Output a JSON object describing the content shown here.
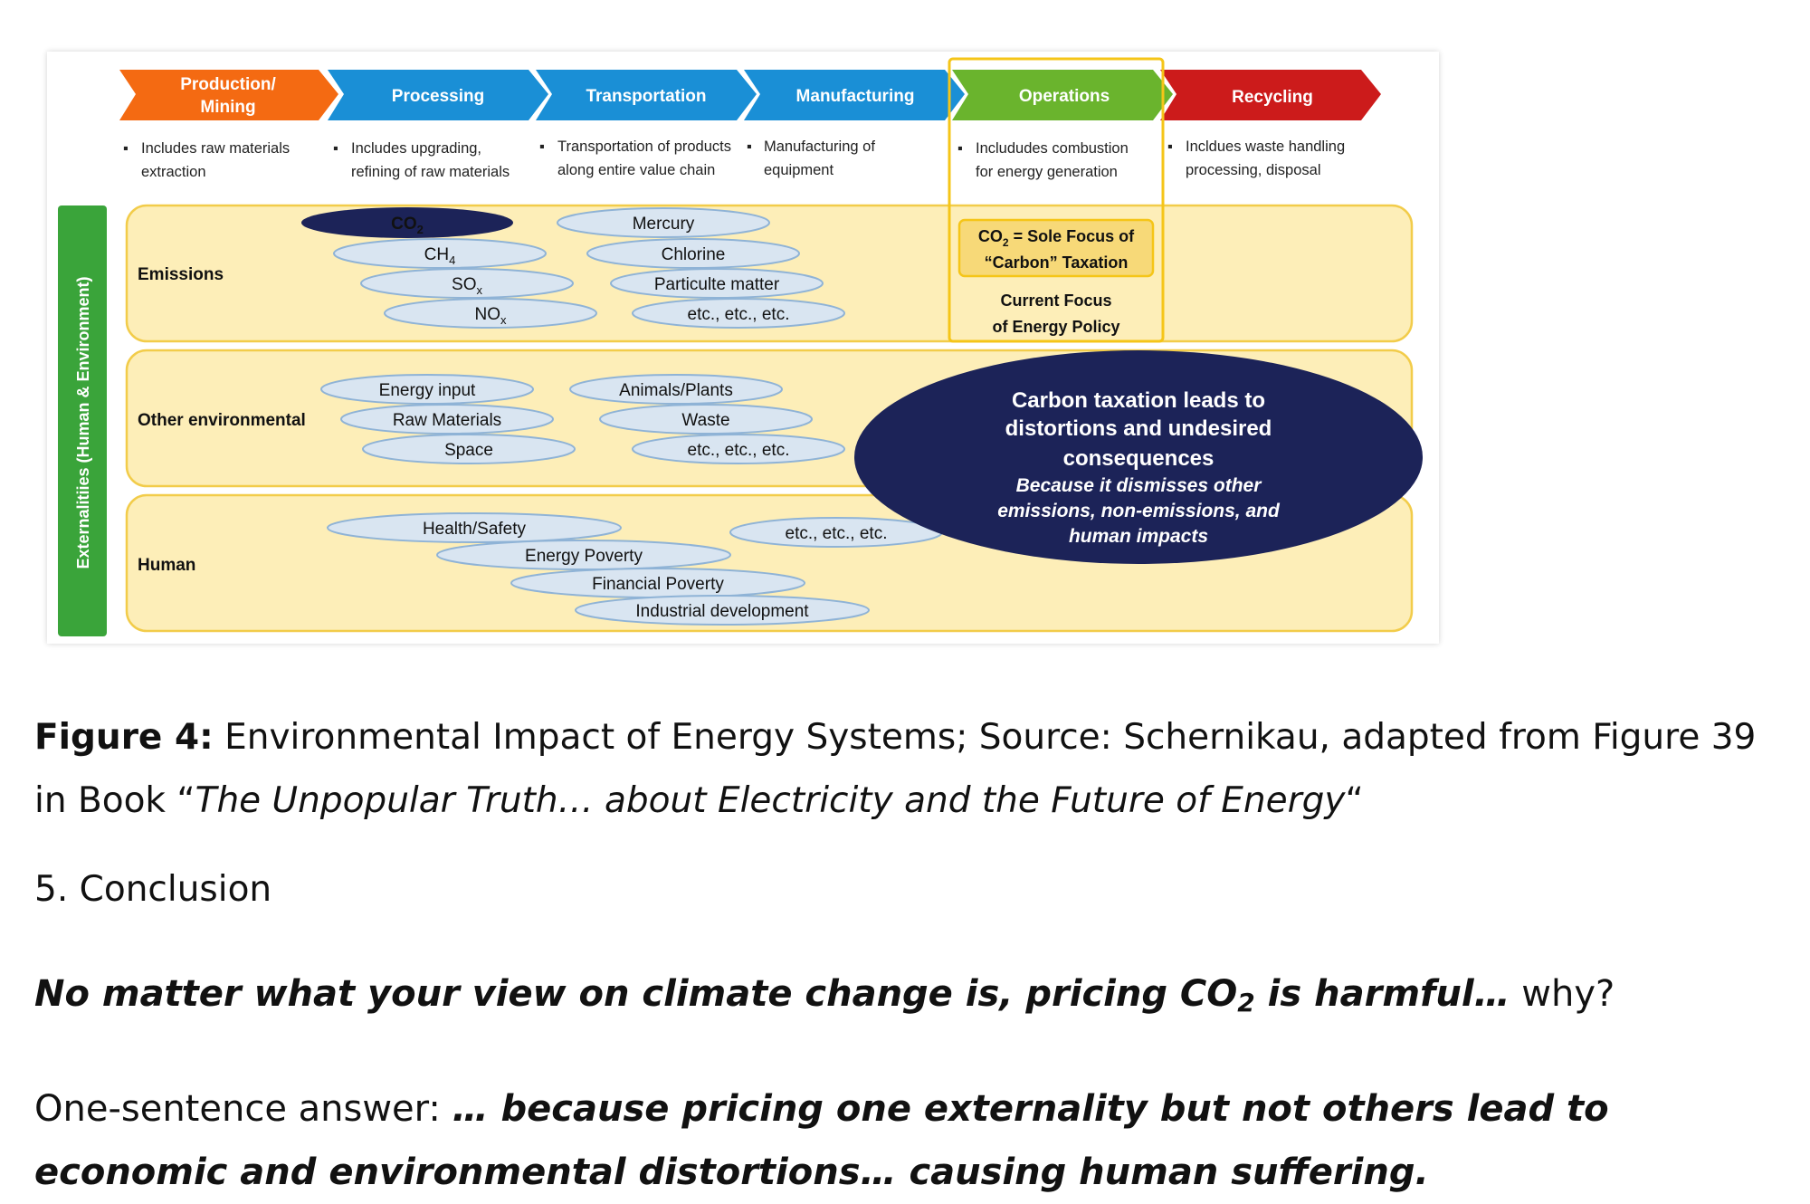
{
  "colors": {
    "production": "#f46a12",
    "processing": "#1a8fd6",
    "transportation": "#1a8fd6",
    "manufacturing": "#1a8fd6",
    "operations": "#6ab42d",
    "recycling": "#cc1b1b",
    "band_fill": "#fdeeb8",
    "band_stroke": "#f2cc4a",
    "ellipse_fill": "#d9e5f1",
    "ellipse_stroke": "#8fb3d6",
    "navy": "#1c2358",
    "side_bar": "#3aa43a"
  },
  "stages": [
    {
      "label_lines": [
        "Production/",
        "Mining"
      ],
      "bullet_lines": [
        "Includes raw materials",
        "extraction"
      ]
    },
    {
      "label_lines": [
        "Processing"
      ],
      "bullet_lines": [
        "Includes upgrading,",
        "refining of raw materials"
      ]
    },
    {
      "label_lines": [
        "Transportation"
      ],
      "bullet_lines": [
        "Transportation of products",
        "along entire value chain"
      ]
    },
    {
      "label_lines": [
        "Manufacturing"
      ],
      "bullet_lines": [
        "Manufacturing of",
        "equipment"
      ]
    },
    {
      "label_lines": [
        "Operations"
      ],
      "bullet_lines": [
        "Includudes combustion",
        "for energy generation"
      ]
    },
    {
      "label_lines": [
        "Recycling"
      ],
      "bullet_lines": [
        "Incldues waste handling",
        "processing, disposal"
      ]
    }
  ],
  "side_label": "Externalitiies (Human & Environment)",
  "rows": [
    {
      "label": "Emissions"
    },
    {
      "label": "Other environmental"
    },
    {
      "label": "Human"
    }
  ],
  "emissions_left": [
    "CO",
    "CH",
    "SO",
    "NO"
  ],
  "emissions_left_subs": [
    "2",
    "4",
    "x",
    "x"
  ],
  "emissions_right": [
    "Mercury",
    "Chlorine",
    "Particulte matter",
    "etc., etc., etc."
  ],
  "other_left": [
    "Energy input",
    "Raw Materials",
    "Space"
  ],
  "other_right": [
    "Animals/Plants",
    "Waste",
    "etc., etc., etc."
  ],
  "human_items": [
    "Health/Safety",
    "Energy Poverty",
    "Financial Poverty",
    "Industrial development",
    "etc., etc., etc."
  ],
  "operations_box": {
    "co2_prefix": "CO",
    "co2_sub": "2",
    "co2_rest": " = Sole Focus of",
    "taxation_line": "“Carbon” Taxation",
    "policy_lines": [
      "Current Focus",
      "of Energy Policy"
    ]
  },
  "navy_callout": {
    "bold_lines": [
      "Carbon taxation leads to",
      "distortions and undesired",
      "consequences"
    ],
    "italic_lines": [
      "Because it dismisses other",
      "emissions, non-emissions, and",
      "human impacts"
    ]
  },
  "caption": {
    "label": "Figure 4:",
    "text": " Environmental Impact of Energy Systems; Source: Schernikau, adapted from Figure 39 in Book “",
    "book_title": "The Unpopular Truth… about Electricity and the Future of Energy",
    "closing": "“"
  },
  "section_heading": "5. Conclusion",
  "question": {
    "bold_part": "No matter what your view on climate change is, pricing CO",
    "sub": "2",
    "bold_tail": " is harmful…",
    "normal_tail": " why?"
  },
  "answer": {
    "prefix": "One-sentence answer: ",
    "bold_part": "… because pricing one externality but not others lead to economic and environmental distortions… causing human suffering."
  }
}
